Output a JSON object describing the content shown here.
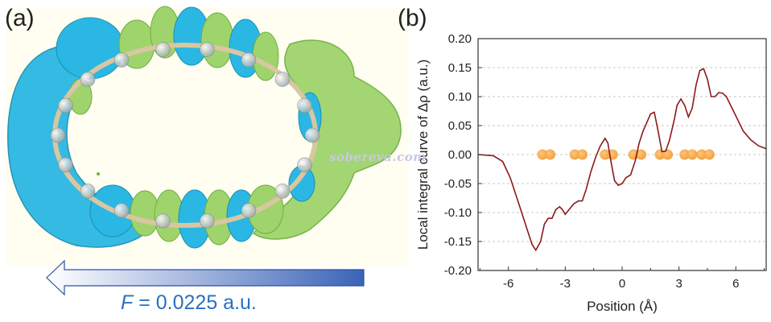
{
  "panel_a": {
    "label": "(a)",
    "field_symbol": "F",
    "field_value_text": " = 0.0225 a.u.",
    "arrow_direction": "left",
    "watermark": "sobereva.com",
    "colors": {
      "negative_lobe": "#2bb7e3",
      "positive_lobe": "#9fd46c",
      "background": "#fffef0",
      "arrow_dark": "#3a63b8",
      "arrow_light": "#ffffff",
      "caption": "#2a6fc0"
    }
  },
  "chart_data": {
    "type": "line",
    "label": "(b)",
    "xlabel": "Position (Å)",
    "ylabel": "Local integral curve of Δρ (a.u.)",
    "xlim": [
      -7.6,
      7.6
    ],
    "ylim": [
      -0.2,
      0.2
    ],
    "x_ticks": [
      -6,
      -3,
      0,
      3,
      6
    ],
    "x_tick_labels": [
      "-6",
      "-3",
      "0",
      "3",
      "6"
    ],
    "y_ticks": [
      -0.2,
      -0.15,
      -0.1,
      -0.05,
      0,
      0.05,
      0.1,
      0.15,
      0.2
    ],
    "y_tick_labels": [
      "-0.20",
      "-0.15",
      "-0.10",
      "-0.05",
      "0.00",
      "0.05",
      "0.10",
      "0.15",
      "0.20"
    ],
    "grid": "horizontal dashed",
    "series": [
      {
        "color": "#8b1a1a",
        "x": [
          -7.6,
          -6.8,
          -6.3,
          -5.9,
          -5.6,
          -5.3,
          -5.0,
          -4.75,
          -4.55,
          -4.3,
          -4.1,
          -3.9,
          -3.7,
          -3.5,
          -3.3,
          -3.15,
          -3.0,
          -2.8,
          -2.55,
          -2.3,
          -2.1,
          -1.9,
          -1.65,
          -1.4,
          -1.15,
          -0.9,
          -0.75,
          -0.6,
          -0.4,
          -0.2,
          0.0,
          0.2,
          0.45,
          0.7,
          0.9,
          1.1,
          1.3,
          1.5,
          1.7,
          1.9,
          2.1,
          2.3,
          2.5,
          2.75,
          2.9,
          3.1,
          3.3,
          3.5,
          3.7,
          3.9,
          4.1,
          4.3,
          4.5,
          4.7,
          4.9,
          5.1,
          5.3,
          5.5,
          5.8,
          6.1,
          6.4,
          6.8,
          7.2,
          7.6
        ],
        "y": [
          0.0,
          -0.002,
          -0.012,
          -0.04,
          -0.07,
          -0.1,
          -0.13,
          -0.155,
          -0.165,
          -0.15,
          -0.12,
          -0.11,
          -0.11,
          -0.095,
          -0.09,
          -0.095,
          -0.103,
          -0.095,
          -0.085,
          -0.08,
          -0.08,
          -0.06,
          -0.03,
          -0.005,
          0.015,
          0.028,
          0.02,
          -0.01,
          -0.045,
          -0.053,
          -0.05,
          -0.04,
          -0.035,
          -0.01,
          0.02,
          0.04,
          0.055,
          0.07,
          0.073,
          0.04,
          0.005,
          0.006,
          0.025,
          0.06,
          0.085,
          0.096,
          0.085,
          0.065,
          0.08,
          0.12,
          0.145,
          0.148,
          0.13,
          0.1,
          0.1,
          0.107,
          0.106,
          0.1,
          0.08,
          0.06,
          0.04,
          0.025,
          0.015,
          0.01
        ]
      }
    ],
    "atom_markers": {
      "color": "#f5a030",
      "y": 0,
      "x": [
        -4.2,
        -3.8,
        -2.5,
        -2.1,
        -0.9,
        -0.5,
        0.6,
        1.0,
        2.0,
        2.4,
        3.3,
        3.7,
        4.2,
        4.6
      ]
    }
  }
}
